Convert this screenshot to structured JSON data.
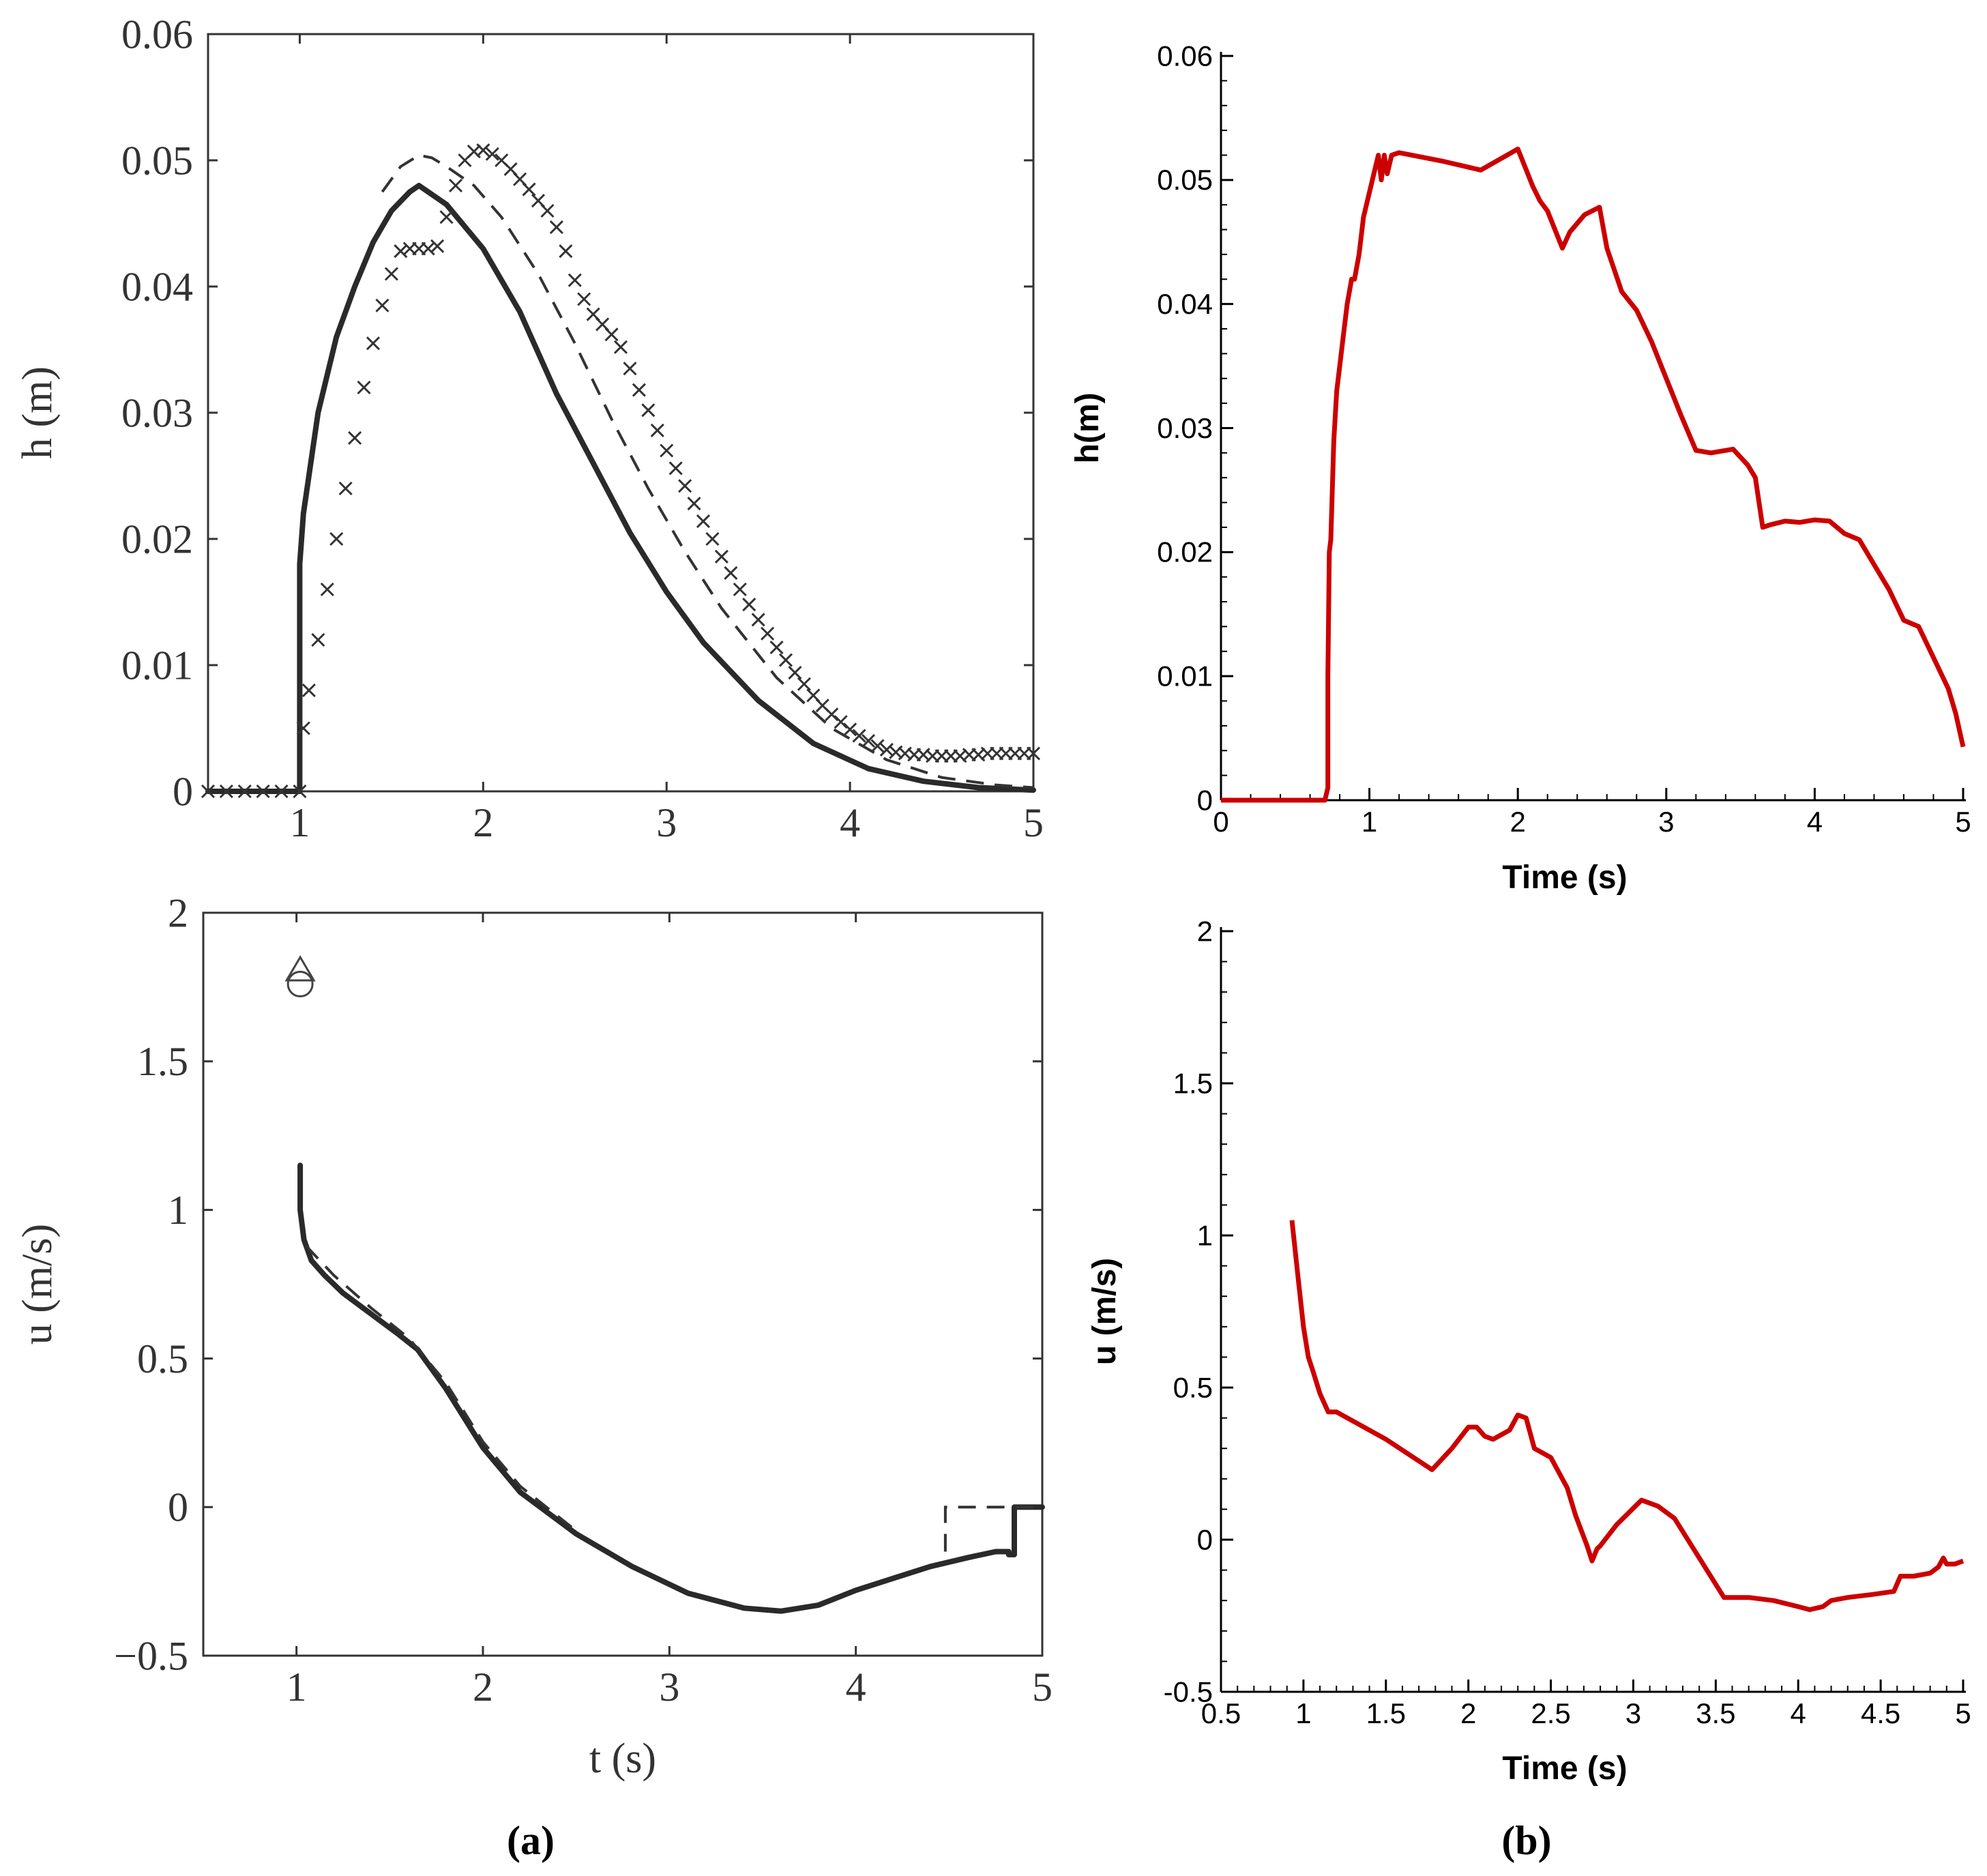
{
  "panel_labels": [
    "(a)",
    "(b)"
  ],
  "colors": {
    "ink": "#2a2a2a",
    "red": "#cc0000",
    "axis": "#000000"
  },
  "chart_data": [
    {
      "id": "a_top",
      "type": "line",
      "xlabel": "",
      "ylabel": "h (m)",
      "xlim": [
        0.5,
        5
      ],
      "ylim": [
        0,
        0.06
      ],
      "xticks": [
        1,
        2,
        3,
        4,
        5
      ],
      "yticks": [
        0,
        0.01,
        0.02,
        0.03,
        0.04,
        0.05,
        0.06
      ],
      "xtick_labels": [
        "1",
        "2",
        "3",
        "4",
        "5"
      ],
      "ytick_labels": [
        "0",
        "0.01",
        "0.02",
        "0.03",
        "0.04",
        "0.05",
        "0.06"
      ],
      "series": [
        {
          "name": "solid",
          "style": "solid",
          "x": [
            0.5,
            1.0,
            1.0,
            1.02,
            1.1,
            1.2,
            1.3,
            1.4,
            1.5,
            1.6,
            1.65,
            1.8,
            2.0,
            2.2,
            2.4,
            2.6,
            2.8,
            3.0,
            3.2,
            3.5,
            3.8,
            4.1,
            4.4,
            4.7,
            5.0
          ],
          "y": [
            0,
            0,
            0.018,
            0.022,
            0.03,
            0.036,
            0.04,
            0.0435,
            0.046,
            0.0475,
            0.048,
            0.0465,
            0.043,
            0.038,
            0.0315,
            0.026,
            0.0205,
            0.0158,
            0.0118,
            0.0072,
            0.0038,
            0.0018,
            0.0008,
            0.0003,
            0.0001
          ]
        },
        {
          "name": "dashed",
          "style": "dashed",
          "x": [
            1.45,
            1.55,
            1.65,
            1.72,
            1.8,
            1.95,
            2.1,
            2.3,
            2.5,
            2.7,
            2.9,
            3.1,
            3.3,
            3.6,
            3.9,
            4.2,
            4.5,
            4.8,
            5.0
          ],
          "y": [
            0.0475,
            0.0495,
            0.0504,
            0.0502,
            0.0495,
            0.048,
            0.0455,
            0.041,
            0.0355,
            0.0295,
            0.024,
            0.019,
            0.0145,
            0.009,
            0.005,
            0.0025,
            0.0011,
            0.0005,
            0.0003
          ]
        },
        {
          "name": "markers",
          "style": "marker-x",
          "x": [
            0.5,
            0.6,
            0.7,
            0.8,
            0.9,
            1.0,
            1.02,
            1.05,
            1.1,
            1.15,
            1.2,
            1.25,
            1.3,
            1.35,
            1.4,
            1.45,
            1.5,
            1.55,
            1.6,
            1.65,
            1.7,
            1.75,
            1.8,
            1.85,
            1.9,
            1.95,
            2.0,
            2.05,
            2.1,
            2.15,
            2.2,
            2.25,
            2.3,
            2.35,
            2.4,
            2.45,
            2.5,
            2.55,
            2.6,
            2.65,
            2.7,
            2.75,
            2.8,
            2.85,
            2.9,
            2.95,
            3.0,
            3.05,
            3.1,
            3.15,
            3.2,
            3.25,
            3.3,
            3.35,
            3.4,
            3.45,
            3.5,
            3.55,
            3.6,
            3.65,
            3.7,
            3.75,
            3.8,
            3.85,
            3.9,
            3.95,
            4.0,
            4.05,
            4.1,
            4.15,
            4.2,
            4.25,
            4.3,
            4.35,
            4.4,
            4.45,
            4.5,
            4.55,
            4.6,
            4.65,
            4.7,
            4.75,
            4.8,
            4.85,
            4.9,
            4.95,
            5.0
          ],
          "y": [
            0,
            0,
            0,
            0,
            0,
            0,
            0.005,
            0.008,
            0.012,
            0.016,
            0.02,
            0.024,
            0.028,
            0.032,
            0.0355,
            0.0385,
            0.041,
            0.0428,
            0.043,
            0.043,
            0.043,
            0.0432,
            0.0455,
            0.048,
            0.05,
            0.0507,
            0.0508,
            0.0505,
            0.05,
            0.0493,
            0.0485,
            0.0477,
            0.0468,
            0.046,
            0.0447,
            0.0428,
            0.0405,
            0.039,
            0.0378,
            0.037,
            0.0362,
            0.0352,
            0.0335,
            0.0318,
            0.0302,
            0.0286,
            0.027,
            0.0256,
            0.0242,
            0.0228,
            0.0214,
            0.02,
            0.0186,
            0.0173,
            0.016,
            0.0148,
            0.0136,
            0.0125,
            0.0114,
            0.0104,
            0.0094,
            0.0085,
            0.0076,
            0.0068,
            0.0061,
            0.0055,
            0.0049,
            0.0044,
            0.004,
            0.0036,
            0.0033,
            0.0031,
            0.003,
            0.0029,
            0.0029,
            0.0028,
            0.0028,
            0.0028,
            0.0028,
            0.0029,
            0.0029,
            0.003,
            0.003,
            0.003,
            0.003,
            0.003,
            0.003
          ]
        }
      ]
    },
    {
      "id": "a_bottom",
      "type": "line",
      "xlabel": "t (s)",
      "ylabel": "u (m/s)",
      "xlim": [
        0.5,
        5
      ],
      "ylim": [
        -0.5,
        2
      ],
      "xticks": [
        1,
        2,
        3,
        4,
        5
      ],
      "yticks": [
        -0.5,
        0,
        0.5,
        1,
        1.5,
        2
      ],
      "xtick_labels": [
        "1",
        "2",
        "3",
        "4",
        "5"
      ],
      "ytick_labels": [
        "−0.5",
        "0",
        "0.5",
        "1",
        "1.5",
        "2"
      ],
      "series": [
        {
          "name": "solid",
          "style": "solid",
          "x": [
            1.02,
            1.02,
            1.04,
            1.08,
            1.15,
            1.25,
            1.4,
            1.55,
            1.65,
            1.8,
            2.0,
            2.2,
            2.5,
            2.8,
            3.1,
            3.4,
            3.6,
            3.8,
            4.0,
            4.2,
            4.4,
            4.6,
            4.75,
            4.8,
            4.82,
            4.82,
            4.85,
            4.85,
            5.0
          ],
          "y": [
            1.15,
            1.0,
            0.9,
            0.83,
            0.78,
            0.72,
            0.65,
            0.58,
            0.53,
            0.4,
            0.2,
            0.05,
            -0.09,
            -0.2,
            -0.29,
            -0.34,
            -0.35,
            -0.33,
            -0.28,
            -0.24,
            -0.2,
            -0.17,
            -0.15,
            -0.15,
            -0.15,
            -0.16,
            -0.16,
            0.0,
            0.0
          ]
        },
        {
          "name": "dashed",
          "style": "dashed",
          "x": [
            1.05,
            1.2,
            1.4,
            1.6,
            1.8,
            2.0,
            2.2,
            2.5
          ],
          "y": [
            0.88,
            0.78,
            0.67,
            0.57,
            0.42,
            0.22,
            0.07,
            -0.08
          ]
        },
        {
          "name": "dashed-end",
          "style": "dashed",
          "x": [
            4.48,
            4.48,
            5.0
          ],
          "y": [
            -0.15,
            0.0,
            0.0
          ]
        },
        {
          "name": "triangle",
          "style": "marker-triangle",
          "x": [
            1.02
          ],
          "y": [
            1.8
          ]
        },
        {
          "name": "circle",
          "style": "marker-circle",
          "x": [
            1.02
          ],
          "y": [
            1.76
          ]
        }
      ]
    },
    {
      "id": "b_top",
      "type": "line",
      "xlabel": "Time (s)",
      "ylabel": "h(m)",
      "xlim": [
        0,
        5
      ],
      "ylim": [
        0,
        0.06
      ],
      "xticks": [
        0,
        1,
        2,
        3,
        4,
        5
      ],
      "yticks": [
        0,
        0.01,
        0.02,
        0.03,
        0.04,
        0.05,
        0.06
      ],
      "xtick_labels": [
        "0",
        "1",
        "2",
        "3",
        "4",
        "5"
      ],
      "ytick_labels": [
        "0",
        "0.01",
        "0.02",
        "0.03",
        "0.04",
        "0.05",
        "0.06"
      ],
      "series": [
        {
          "name": "simulation",
          "style": "red",
          "x": [
            0,
            0.7,
            0.71,
            0.72,
            0.72,
            0.73,
            0.74,
            0.75,
            0.76,
            0.78,
            0.8,
            0.82,
            0.85,
            0.88,
            0.9,
            0.93,
            0.96,
            1.0,
            1.04,
            1.06,
            1.08,
            1.1,
            1.12,
            1.15,
            1.2,
            1.5,
            1.75,
            2.0,
            2.05,
            2.1,
            2.15,
            2.2,
            2.25,
            2.3,
            2.35,
            2.45,
            2.55,
            2.6,
            2.7,
            2.8,
            2.9,
            3.0,
            3.1,
            3.2,
            3.3,
            3.45,
            3.55,
            3.6,
            3.65,
            3.7,
            3.8,
            3.9,
            4.0,
            4.1,
            4.2,
            4.3,
            4.4,
            4.5,
            4.6,
            4.7,
            4.8,
            4.9,
            4.95,
            5.0
          ],
          "y": [
            0,
            0,
            0.0005,
            0.001,
            0.01,
            0.02,
            0.021,
            0.025,
            0.029,
            0.033,
            0.035,
            0.037,
            0.04,
            0.042,
            0.042,
            0.044,
            0.047,
            0.049,
            0.051,
            0.052,
            0.05,
            0.052,
            0.0505,
            0.052,
            0.0522,
            0.0515,
            0.0508,
            0.0525,
            0.051,
            0.0495,
            0.0483,
            0.0475,
            0.046,
            0.0445,
            0.0458,
            0.0472,
            0.0478,
            0.0445,
            0.041,
            0.0395,
            0.037,
            0.034,
            0.031,
            0.0282,
            0.028,
            0.0283,
            0.027,
            0.026,
            0.022,
            0.0222,
            0.0225,
            0.0224,
            0.0226,
            0.0225,
            0.0215,
            0.021,
            0.019,
            0.017,
            0.0145,
            0.014,
            0.0115,
            0.009,
            0.007,
            0.0043
          ]
        }
      ]
    },
    {
      "id": "b_bottom",
      "type": "line",
      "xlabel": "Time (s)",
      "ylabel": "u (m/s)",
      "xlim": [
        0.5,
        5
      ],
      "ylim": [
        -0.5,
        2
      ],
      "xticks": [
        0.5,
        1,
        1.5,
        2,
        2.5,
        3,
        3.5,
        4,
        4.5,
        5
      ],
      "yticks": [
        -0.5,
        0,
        0.5,
        1,
        1.5,
        2
      ],
      "xtick_labels": [
        "0.5",
        "1",
        "1.5",
        "2",
        "2.5",
        "3",
        "3.5",
        "4",
        "4.5",
        "5"
      ],
      "ytick_labels": [
        "-0.5",
        "0",
        "0.5",
        "1",
        "1.5",
        "2"
      ],
      "series": [
        {
          "name": "simulation",
          "style": "red",
          "x": [
            0.93,
            0.97,
            1.0,
            1.03,
            1.06,
            1.1,
            1.15,
            1.2,
            1.5,
            1.78,
            1.9,
            2.0,
            2.05,
            2.1,
            2.15,
            2.25,
            2.3,
            2.35,
            2.4,
            2.5,
            2.55,
            2.6,
            2.65,
            2.72,
            2.75,
            2.78,
            2.8,
            2.9,
            3.05,
            3.15,
            3.25,
            3.4,
            3.55,
            3.7,
            3.85,
            4.0,
            4.07,
            4.15,
            4.2,
            4.3,
            4.45,
            4.58,
            4.62,
            4.7,
            4.8,
            4.85,
            4.88,
            4.9,
            4.95,
            5.0
          ],
          "y": [
            1.05,
            0.85,
            0.7,
            0.6,
            0.55,
            0.48,
            0.42,
            0.42,
            0.33,
            0.23,
            0.3,
            0.37,
            0.37,
            0.34,
            0.33,
            0.36,
            0.41,
            0.4,
            0.3,
            0.27,
            0.22,
            0.17,
            0.08,
            -0.02,
            -0.07,
            -0.03,
            -0.02,
            0.05,
            0.13,
            0.11,
            0.07,
            -0.06,
            -0.19,
            -0.19,
            -0.2,
            -0.22,
            -0.23,
            -0.22,
            -0.2,
            -0.19,
            -0.18,
            -0.17,
            -0.12,
            -0.12,
            -0.11,
            -0.09,
            -0.06,
            -0.08,
            -0.08,
            -0.07
          ]
        }
      ]
    }
  ]
}
